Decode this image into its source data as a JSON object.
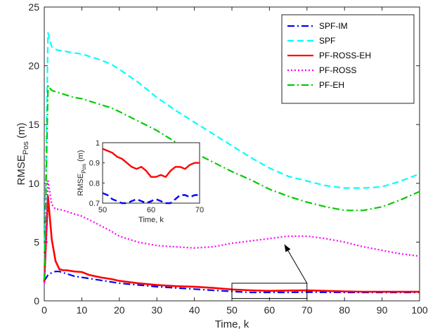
{
  "chart_data": [
    {
      "type": "line",
      "xlabel": "Time, k",
      "ylabel": "RMSE",
      "ylabel_sub": "Pos",
      "ylabel_suffix": " (m)",
      "xlim": [
        0,
        100
      ],
      "ylim": [
        0,
        25
      ],
      "xticks": [
        0,
        10,
        20,
        30,
        40,
        50,
        60,
        70,
        80,
        90,
        100
      ],
      "yticks": [
        0,
        5,
        10,
        15,
        20,
        25
      ],
      "grid": false,
      "legend_position": "top-right",
      "x": [
        0,
        1,
        2,
        3,
        4,
        5,
        6,
        8,
        10,
        12,
        15,
        18,
        20,
        25,
        30,
        35,
        40,
        45,
        50,
        55,
        60,
        65,
        70,
        75,
        80,
        85,
        90,
        95,
        100
      ],
      "series": [
        {
          "name": "SPF-IM",
          "color": "#0000ff",
          "dash": "dashdot",
          "values": [
            1.7,
            2.2,
            2.4,
            2.5,
            2.5,
            2.4,
            2.3,
            2.1,
            2.0,
            1.9,
            1.75,
            1.6,
            1.5,
            1.35,
            1.2,
            1.1,
            1.0,
            0.9,
            0.8,
            0.72,
            0.72,
            0.72,
            0.74,
            0.73,
            0.72,
            0.72,
            0.72,
            0.72,
            0.72
          ]
        },
        {
          "name": "SPF",
          "color": "#00ffff",
          "dash": "dash",
          "values": [
            1.8,
            22.8,
            21.6,
            21.4,
            21.3,
            21.3,
            21.2,
            21.1,
            21.0,
            20.8,
            20.5,
            20.1,
            19.7,
            18.6,
            17.3,
            16.2,
            15.2,
            14.2,
            13.2,
            12.2,
            11.3,
            10.6,
            10.2,
            9.8,
            9.6,
            9.6,
            9.7,
            10.2,
            10.8
          ]
        },
        {
          "name": "PF-ROSS-EH",
          "color": "#ff0000",
          "dash": "solid",
          "values": [
            1.6,
            8.9,
            5.2,
            3.4,
            2.7,
            2.6,
            2.6,
            2.5,
            2.45,
            2.2,
            2.0,
            1.85,
            1.7,
            1.5,
            1.35,
            1.25,
            1.2,
            1.1,
            0.97,
            0.9,
            0.85,
            0.88,
            0.9,
            0.85,
            0.8,
            0.78,
            0.77,
            0.77,
            0.77
          ]
        },
        {
          "name": "PF-ROSS",
          "color": "#ff00ff",
          "dash": "dot",
          "values": [
            1.5,
            10.2,
            8.2,
            7.8,
            7.8,
            7.7,
            7.6,
            7.4,
            7.2,
            6.9,
            6.4,
            5.9,
            5.5,
            5.0,
            4.7,
            4.6,
            4.5,
            4.6,
            4.9,
            5.1,
            5.3,
            5.5,
            5.5,
            5.3,
            5.0,
            4.6,
            4.3,
            4.0,
            3.8
          ]
        },
        {
          "name": "PF-EH",
          "color": "#00cc00",
          "dash": "dashdot",
          "values": [
            1.8,
            18.3,
            17.9,
            17.8,
            17.7,
            17.6,
            17.5,
            17.3,
            17.2,
            17.0,
            16.7,
            16.4,
            16.1,
            15.3,
            14.5,
            13.5,
            12.6,
            11.8,
            11.0,
            10.3,
            9.5,
            8.9,
            8.4,
            8.0,
            7.7,
            7.7,
            8.0,
            8.6,
            9.3
          ]
        }
      ]
    },
    {
      "type": "line",
      "xlabel": "Time, k",
      "ylabel": "RMSE",
      "ylabel_sub": "Pos",
      "ylabel_suffix": " (m)",
      "xlim": [
        50,
        70
      ],
      "ylim": [
        0.7,
        1.0
      ],
      "xticks": [
        50,
        60,
        70
      ],
      "yticks": [
        0.7,
        0.8,
        0.9,
        1
      ],
      "ytick_labels": [
        "0.7",
        "0.8",
        "0.9",
        "1"
      ],
      "series": [
        {
          "name": "SPF-IM",
          "color": "#0000ff",
          "dash": "dash",
          "x": [
            50,
            51,
            52,
            53,
            54,
            55,
            56,
            57,
            58,
            59,
            60,
            61,
            62,
            63,
            64,
            65,
            66,
            67,
            68,
            69,
            70
          ],
          "values": [
            0.75,
            0.74,
            0.72,
            0.71,
            0.7,
            0.7,
            0.71,
            0.72,
            0.71,
            0.7,
            0.71,
            0.72,
            0.71,
            0.7,
            0.7,
            0.72,
            0.74,
            0.74,
            0.73,
            0.74,
            0.74
          ]
        },
        {
          "name": "PF-ROSS-EH",
          "color": "#ff0000",
          "dash": "solid",
          "x": [
            50,
            51,
            52,
            53,
            54,
            55,
            56,
            57,
            58,
            59,
            60,
            61,
            62,
            63,
            64,
            65,
            66,
            67,
            68,
            69,
            70
          ],
          "values": [
            0.97,
            0.96,
            0.95,
            0.93,
            0.92,
            0.9,
            0.88,
            0.87,
            0.88,
            0.86,
            0.83,
            0.83,
            0.84,
            0.83,
            0.86,
            0.88,
            0.88,
            0.87,
            0.89,
            0.9,
            0.9
          ]
        }
      ]
    }
  ],
  "zoom_box": {
    "x_range": [
      50,
      70
    ],
    "y_range": [
      0.2,
      1.5
    ],
    "arrow_end": [
      64,
      4.8
    ]
  }
}
